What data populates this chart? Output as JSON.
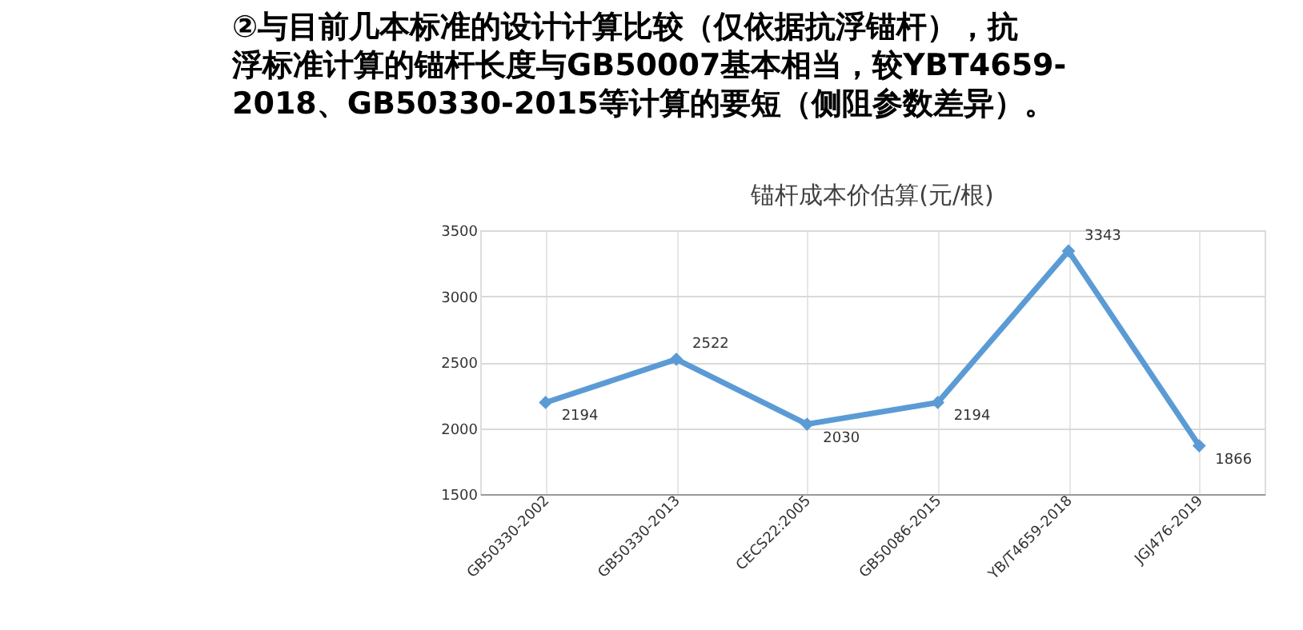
{
  "chart_data": {
    "type": "line",
    "title": "锚杆成本价估算(元/根)",
    "annotations": [
      "②与目前几本标准的设计计算比较（仅依据抗浮锚杆），抗",
      "浮标准计算的锚杆长度与GB50007基本相当，较YBT4659-",
      "2018、GB50330-2015等计算的要短（侧阻参数差异）。"
    ],
    "categories": [
      "GB50330-2002",
      "GB50330-2013",
      "CECS22:2005",
      "GB50086-2015",
      "YB/T4659-2018",
      "JGJ476-2019"
    ],
    "series": [
      {
        "color": "#5b9bd5",
        "values": [
          2194,
          2522,
          2030,
          2194,
          3343,
          1866
        ]
      }
    ],
    "ylim": [
      1500,
      3500
    ],
    "yticks": [
      1500,
      2000,
      2500,
      3000,
      3500
    ],
    "grid": true,
    "marker": "diamond",
    "line_style": "solid",
    "data_labels": true,
    "legend": false
  }
}
